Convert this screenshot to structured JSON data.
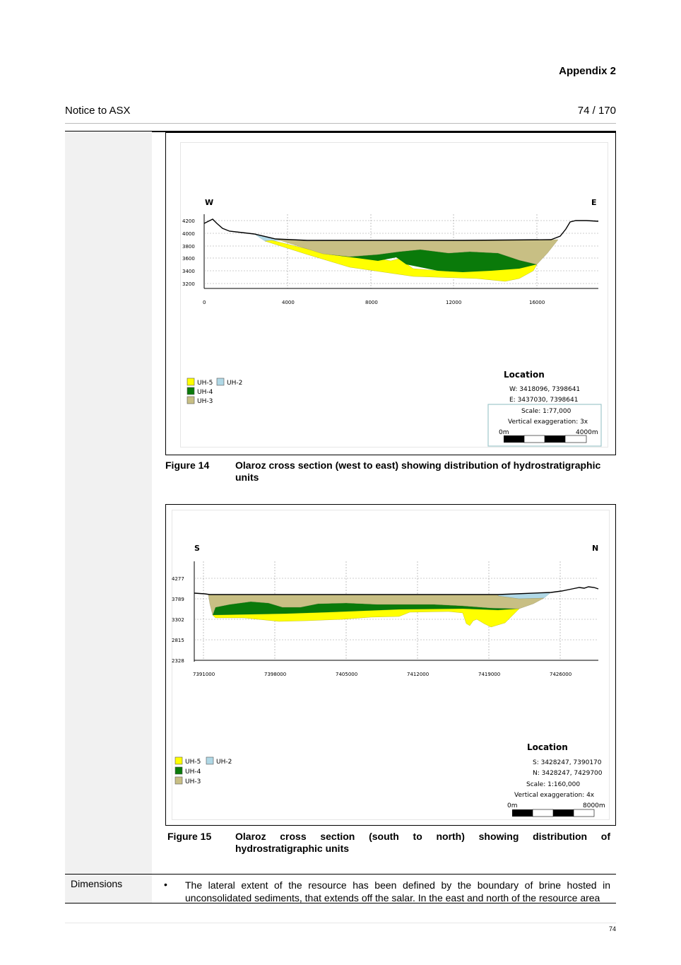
{
  "header": {
    "appendix": "Appendix 2",
    "notice": "Notice to ASX",
    "page_counter": "74 / 170"
  },
  "colors": {
    "uh5": "#ffff00",
    "uh4": "#0a7a0a",
    "uh3": "#c8bf84",
    "uh2": "#b0d8e6"
  },
  "figure14": {
    "label": "Figure 14",
    "caption": "Olaroz cross section (west to east) showing distribution of hydrostratigraphic units",
    "dir_left": "W",
    "dir_right": "E",
    "y_ticks": [
      "4200",
      "4000",
      "3800",
      "3600",
      "3400",
      "3200"
    ],
    "x_ticks": [
      "0",
      "4000",
      "8000",
      "12000",
      "16000"
    ],
    "legend": {
      "uh5": "UH-5",
      "uh2": "UH-2",
      "uh4": "UH-4",
      "uh3": "UH-3"
    },
    "location_title": "Location",
    "loc_line1": "W:  3418096, 7398641",
    "loc_line2": "E:  3437030, 7398641",
    "scale": "Scale: 1:77,000",
    "vert_exag": "Vertical exaggeration: 3x",
    "scalebar_start": "0m",
    "scalebar_end": "4000m"
  },
  "figure15": {
    "label": "Figure 15",
    "caption": "Olaroz cross section (south to north) showing distribution of hydrostratigraphic units",
    "dir_left": "S",
    "dir_right": "N",
    "y_ticks": [
      "4277",
      "3789",
      "3302",
      "2815",
      "2328"
    ],
    "x_ticks": [
      "7391000",
      "7398000",
      "7405000",
      "7412000",
      "7419000",
      "7426000"
    ],
    "legend": {
      "uh5": "UH-5",
      "uh2": "UH-2",
      "uh4": "UH-4",
      "uh3": "UH-3"
    },
    "location_title": "Location",
    "loc_line1": "S:  3428247, 7390170",
    "loc_line2": "N:  3428247, 7429700",
    "scale": "Scale: 1:160,000",
    "vert_exag": "Vertical exaggeration: 4x",
    "scalebar_start": "0m",
    "scalebar_end": "8000m"
  },
  "dimensions": {
    "label": "Dimensions",
    "bullet": "•",
    "text": "The lateral extent of the resource has been defined by the boundary of brine hosted in unconsolidated sediments, that extends off the salar. In the east and north of the resource area"
  },
  "footer": {
    "page_number": "74"
  }
}
